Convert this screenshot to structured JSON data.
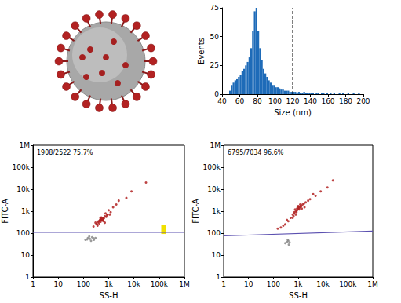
{
  "chart_data": [
    {
      "type": "histogram",
      "x_label": "Size (nm)",
      "y_label": "Events",
      "bins": [
        40,
        42,
        44,
        46,
        48,
        50,
        52,
        54,
        56,
        58,
        60,
        62,
        64,
        66,
        68,
        70,
        72,
        74,
        76,
        78,
        80,
        82,
        84,
        86,
        88,
        90,
        92,
        94,
        96,
        98,
        100,
        102,
        104,
        106,
        108,
        110,
        112,
        114,
        116,
        118,
        120,
        122,
        124,
        126,
        128,
        130,
        132,
        134,
        136,
        138,
        140,
        142,
        144,
        146,
        148,
        150,
        152,
        154,
        156,
        158,
        160,
        162,
        164,
        166,
        168,
        170,
        172,
        174,
        176,
        178,
        180,
        182,
        184,
        186,
        188,
        190,
        192,
        194,
        196,
        198,
        200
      ],
      "values": [
        0,
        0,
        0,
        0,
        3,
        8,
        10,
        12,
        13,
        15,
        17,
        20,
        22,
        25,
        28,
        32,
        40,
        55,
        72,
        75,
        55,
        40,
        30,
        22,
        18,
        15,
        12,
        10,
        8,
        8,
        6,
        6,
        5,
        4,
        4,
        3,
        3,
        3,
        2,
        2,
        2,
        2,
        1,
        2,
        1,
        1,
        2,
        1,
        1,
        1,
        1,
        1,
        0,
        1,
        1,
        0,
        1,
        1,
        0,
        1,
        0,
        1,
        0,
        1,
        0,
        0,
        1,
        0,
        1,
        0,
        0,
        1,
        0,
        0,
        1,
        0,
        0,
        1,
        0,
        0
      ],
      "color": "#1e6bb8",
      "dashed_lines": [
        120
      ],
      "xlim": [
        40,
        200
      ],
      "xticks": [
        40,
        60,
        80,
        100,
        120,
        140,
        160,
        180,
        200
      ],
      "ylim": [
        0,
        75
      ],
      "yticks": [
        0,
        25,
        50,
        75
      ]
    },
    {
      "type": "scatter",
      "log": true,
      "x_label": "SS-H",
      "y_label": "FITC-A",
      "annotation": "1908/2522 75.7%",
      "xlim": [
        1,
        1000000
      ],
      "ylim": [
        1,
        1000000
      ],
      "xticks": [
        1,
        10,
        100,
        {
          "value": 1000,
          "label": "1k"
        },
        {
          "value": 10000,
          "label": "10k"
        },
        {
          "value": 100000,
          "label": "100k"
        },
        {
          "value": 1000000,
          "label": "1M"
        }
      ],
      "yticks": [
        1,
        10,
        100,
        {
          "value": 1000,
          "label": "1k"
        },
        {
          "value": 10000,
          "label": "10k"
        },
        {
          "value": 100000,
          "label": "100k"
        },
        {
          "value": 1000000,
          "label": "1M"
        }
      ],
      "series": [
        {
          "type": "scatter",
          "marker": "circle",
          "color": "#b22222",
          "x": [
            300,
            400,
            500,
            600,
            450,
            550,
            350,
            700,
            800,
            480,
            520,
            650,
            420,
            380,
            900,
            1200,
            250,
            560,
            610,
            470,
            530,
            750,
            330,
            1000,
            1500,
            2000,
            440,
            580,
            510,
            620,
            360,
            850,
            2500,
            5000,
            8000,
            30000,
            700,
            1100,
            460,
            540
          ],
          "y": [
            300,
            350,
            400,
            500,
            380,
            420,
            250,
            600,
            550,
            330,
            460,
            480,
            280,
            320,
            700,
            900,
            200,
            380,
            450,
            500,
            420,
            800,
            260,
            1100,
            1500,
            2000,
            360,
            400,
            520,
            350,
            220,
            650,
            3000,
            4000,
            8000,
            20000,
            300,
            700,
            410,
            440
          ]
        },
        {
          "type": "scatter",
          "marker": "circle",
          "color": "#888888",
          "x": [
            120,
            150,
            180,
            200,
            220,
            260,
            300,
            170,
            140,
            250
          ],
          "y": [
            50,
            60,
            55,
            45,
            65,
            50,
            60,
            70,
            52,
            58
          ]
        },
        {
          "type": "scatter",
          "marker": "square",
          "color": "#f0e000",
          "x": [
            150000
          ],
          "y": [
            150
          ]
        },
        {
          "type": "line",
          "line_style": "solid",
          "color": "#5b50b0",
          "x": [
            1,
            1000000
          ],
          "y": [
            110,
            110
          ]
        }
      ]
    },
    {
      "type": "scatter",
      "log": true,
      "x_label": "SS-H",
      "y_label": "FITC-A",
      "annotation": "6795/7034 96.6%",
      "xlim": [
        1,
        1000000
      ],
      "ylim": [
        1,
        1000000
      ],
      "xticks": [
        1,
        10,
        100,
        {
          "value": 1000,
          "label": "1k"
        },
        {
          "value": 10000,
          "label": "10k"
        },
        {
          "value": 100000,
          "label": "100k"
        },
        {
          "value": 1000000,
          "label": "1M"
        }
      ],
      "yticks": [
        1,
        10,
        100,
        {
          "value": 1000,
          "label": "1k"
        },
        {
          "value": 10000,
          "label": "10k"
        },
        {
          "value": 100000,
          "label": "100k"
        },
        {
          "value": 1000000,
          "label": "1M"
        }
      ],
      "series": [
        {
          "type": "scatter",
          "marker": "circle",
          "color": "#b22222",
          "x": [
            200,
            300,
            400,
            500,
            600,
            700,
            800,
            900,
            1000,
            1100,
            1200,
            1300,
            1500,
            1700,
            2000,
            2500,
            3000,
            5000,
            8000,
            15000,
            25000,
            150,
            250,
            350,
            650,
            750,
            850,
            950,
            1050,
            1400,
            900,
            1000,
            1100,
            800,
            1200,
            600,
            1800,
            4000,
            700,
            1300
          ],
          "y": [
            180,
            250,
            350,
            500,
            700,
            800,
            1000,
            1100,
            1300,
            1400,
            1500,
            1600,
            2000,
            2200,
            2500,
            3000,
            3500,
            5000,
            8000,
            12000,
            25000,
            160,
            220,
            400,
            600,
            1200,
            900,
            1500,
            1600,
            1300,
            1300,
            1700,
            1200,
            700,
            2000,
            500,
            1500,
            6000,
            900,
            1800
          ]
        },
        {
          "type": "scatter",
          "marker": "circle",
          "color": "#888888",
          "x": [
            300,
            350,
            400,
            450,
            380,
            420
          ],
          "y": [
            35,
            40,
            45,
            38,
            50,
            30
          ]
        },
        {
          "type": "line",
          "line_style": "solid",
          "color": "#5b50b0",
          "x": [
            1,
            1000000
          ],
          "y": [
            75,
            125
          ]
        }
      ]
    }
  ]
}
